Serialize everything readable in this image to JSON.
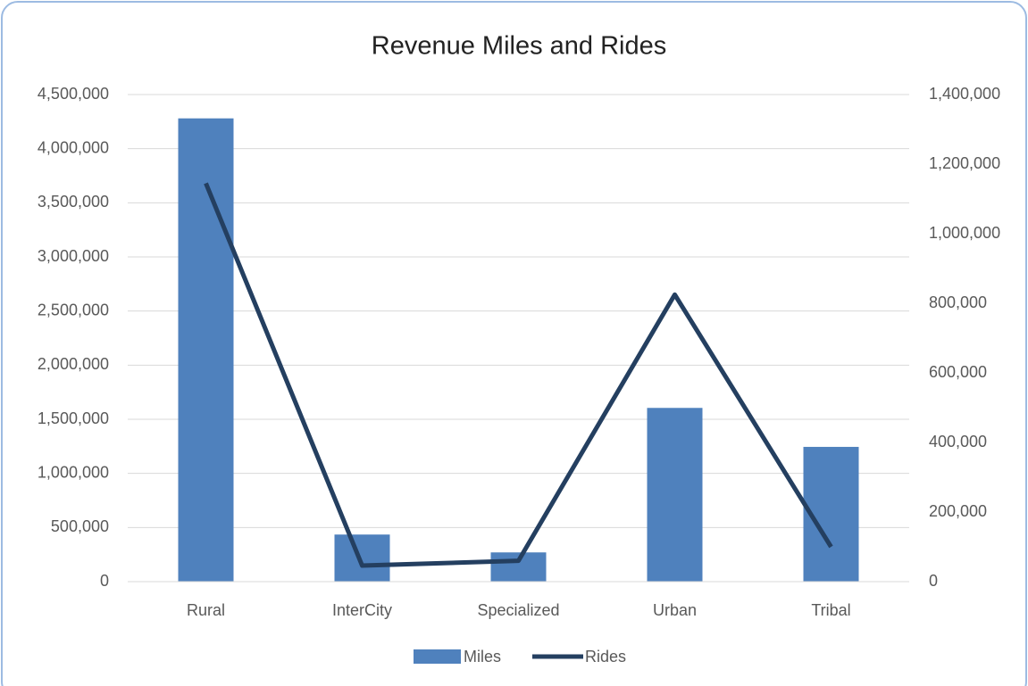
{
  "chart_data": {
    "type": "bar",
    "title": "Revenue Miles and Rides",
    "categories": [
      "Rural",
      "InterCity",
      "Specialized",
      "Urban",
      "Tribal"
    ],
    "series": [
      {
        "name": "Miles",
        "type": "bar",
        "color": "#4f81bd",
        "values": [
          4280000,
          435000,
          270000,
          1605000,
          1245000
        ]
      },
      {
        "name": "Rides",
        "type": "line",
        "axis": "y2",
        "color": "#243f60",
        "values": [
          1145000,
          46000,
          60000,
          825000,
          100000
        ]
      }
    ],
    "ylim": [
      0,
      4500000
    ],
    "yticks": [
      0,
      {
        "value": 500000,
        "label": "500,000"
      },
      {
        "value": 1000000,
        "label": "1,000,000"
      },
      {
        "value": 1500000,
        "label": "1,500,000"
      },
      {
        "value": 2000000,
        "label": "2,000,000"
      },
      {
        "value": 2500000,
        "label": "2,500,000"
      },
      {
        "value": 3000000,
        "label": "3,000,000"
      },
      {
        "value": 3500000,
        "label": "3,500,000"
      },
      {
        "value": 4000000,
        "label": "4,000,000"
      },
      {
        "value": 4500000,
        "label": "4,500,000"
      }
    ],
    "y2lim": [
      0,
      1400000
    ],
    "y2ticks": [
      0,
      {
        "value": 200000,
        "label": "200,000"
      },
      {
        "value": 400000,
        "label": "400,000"
      },
      {
        "value": 600000,
        "label": "600,000"
      },
      {
        "value": 800000,
        "label": "800,000"
      },
      {
        "value": 1000000,
        "label": "1,000,000"
      },
      {
        "value": 1200000,
        "label": "1,200,000"
      },
      {
        "value": 1400000,
        "label": "1,400,000"
      }
    ],
    "grid": true,
    "legend": "bottom"
  }
}
